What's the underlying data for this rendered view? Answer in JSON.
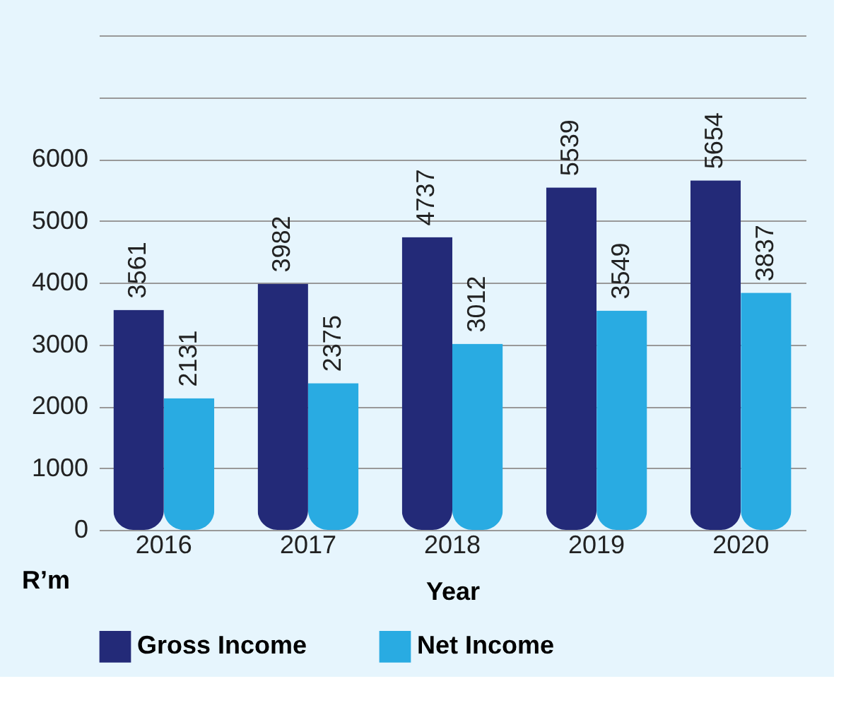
{
  "chart_data": {
    "type": "bar",
    "xlabel": "Year",
    "ylabel": "R’m",
    "categories": [
      "2016",
      "2017",
      "2018",
      "2019",
      "2020"
    ],
    "series": [
      {
        "name": "Gross Income",
        "color": "#232a78",
        "values": [
          3561,
          3982,
          4737,
          5539,
          5654
        ]
      },
      {
        "name": "Net Income",
        "color": "#29abe2",
        "values": [
          2131,
          2375,
          3012,
          3549,
          3837
        ]
      }
    ],
    "ylim": [
      0,
      8000
    ],
    "yticks": [
      0,
      1000,
      2000,
      3000,
      4000,
      5000,
      6000,
      {
        "value": 7000,
        "label": null
      },
      {
        "value": 8000,
        "label": null
      }
    ],
    "data_labels": true,
    "grid": "y",
    "legend": "bottom"
  }
}
